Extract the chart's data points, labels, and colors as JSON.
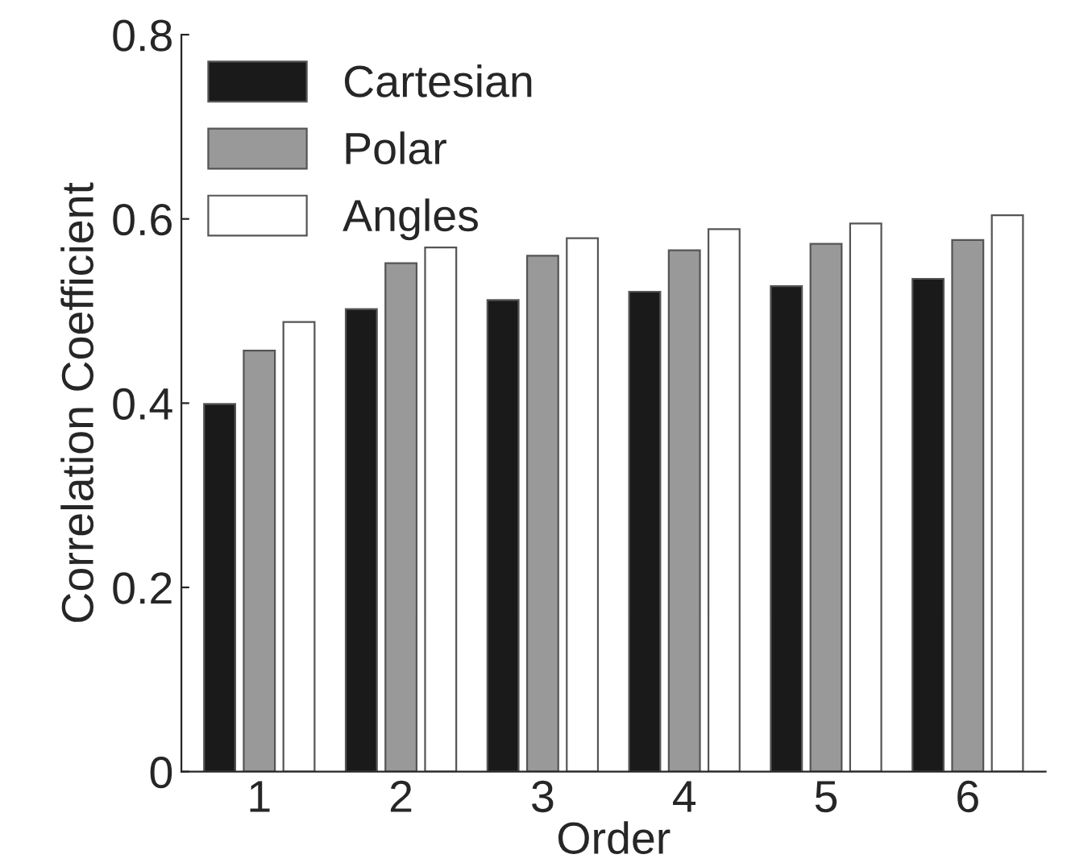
{
  "chart_data": {
    "type": "bar",
    "xlabel": "Order",
    "ylabel": "Correlation Coefficient",
    "categories": [
      "1",
      "2",
      "3",
      "4",
      "5",
      "6"
    ],
    "series": [
      {
        "name": "Cartesian",
        "color": "#1a1a1a",
        "values": [
          0.399,
          0.502,
          0.512,
          0.521,
          0.527,
          0.535
        ]
      },
      {
        "name": "Polar",
        "color": "#999999",
        "values": [
          0.457,
          0.552,
          0.56,
          0.566,
          0.573,
          0.577
        ]
      },
      {
        "name": "Angles",
        "color": "#ffffff",
        "values": [
          0.488,
          0.569,
          0.579,
          0.589,
          0.595,
          0.604
        ]
      }
    ],
    "ylim": [
      0,
      0.8
    ],
    "yticks": [
      0,
      0.2,
      0.4,
      0.6,
      0.8
    ],
    "legend": "top left",
    "grid": false
  }
}
